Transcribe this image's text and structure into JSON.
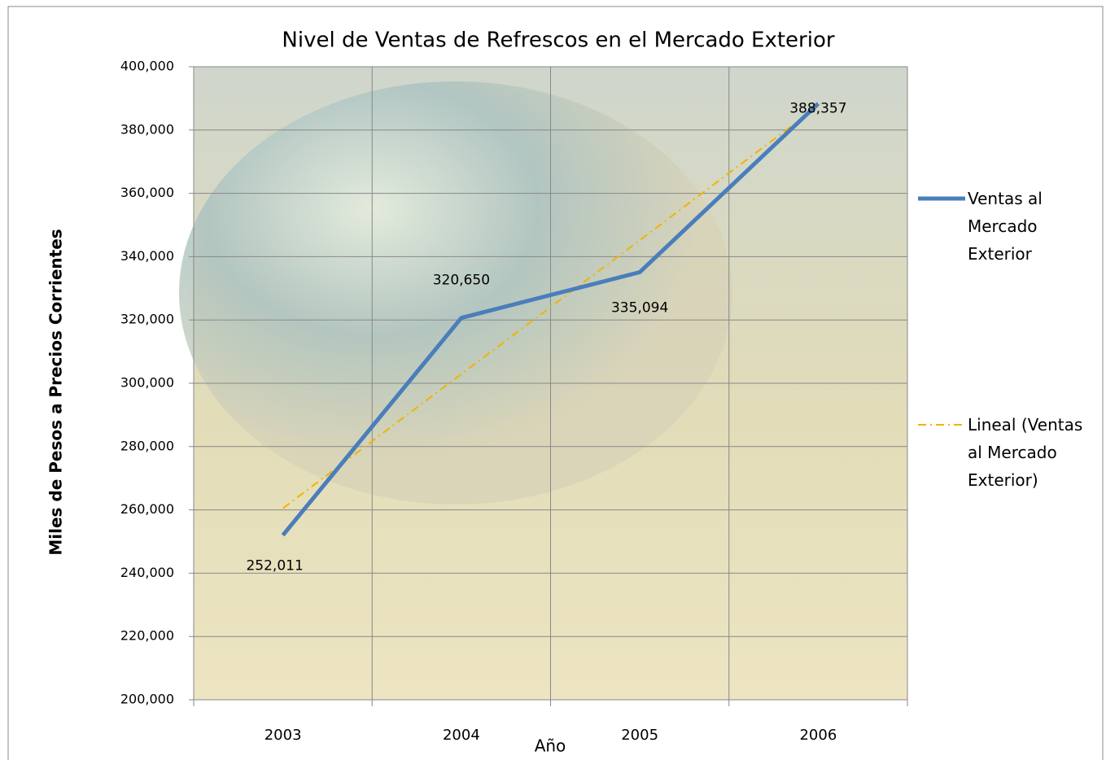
{
  "chart_data": {
    "type": "line",
    "title": "Nivel de Ventas de Refrescos en el Mercado Exterior",
    "x_label": "Año",
    "y_label": "Miles de Pesos a  Precios Corrientes",
    "categories": [
      "2003",
      "2004",
      "2005",
      "2006"
    ],
    "series": [
      {
        "name": "Ventas al Mercado Exterior",
        "color": "#4a7ebb",
        "style": "solid",
        "values": [
          252011,
          320650,
          335094,
          388357
        ],
        "value_labels": [
          "252,011",
          "320,650",
          "335,094",
          "388,357"
        ]
      },
      {
        "name": "Lineal (Ventas al Mercado Exterior)",
        "color": "#f0b400",
        "style": "dashdot",
        "values": [
          260500,
          302900,
          345200,
          387600
        ]
      }
    ],
    "ylim": [
      200000,
      400000
    ],
    "yticks": [
      {
        "value": 200000,
        "label": "200,000"
      },
      {
        "value": 220000,
        "label": "220,000"
      },
      {
        "value": 240000,
        "label": "240,000"
      },
      {
        "value": 260000,
        "label": "260,000"
      },
      {
        "value": 280000,
        "label": "280,000"
      },
      {
        "value": 300000,
        "label": "300,000"
      },
      {
        "value": 320000,
        "label": "320,000"
      },
      {
        "value": 340000,
        "label": "340,000"
      },
      {
        "value": 360000,
        "label": "360,000"
      },
      {
        "value": 380000,
        "label": "380,000"
      },
      {
        "value": 400000,
        "label": "400,000"
      }
    ],
    "grid": true,
    "legend": "right"
  }
}
